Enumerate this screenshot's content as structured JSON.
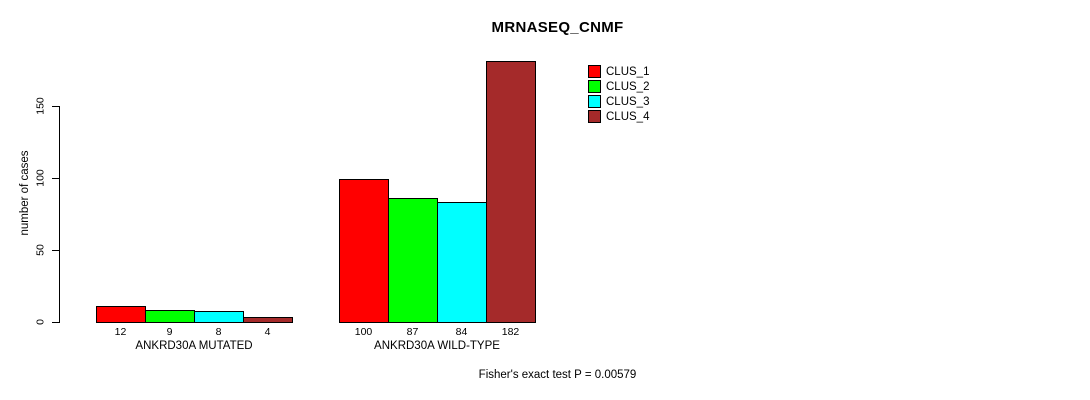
{
  "chart_data": {
    "type": "bar",
    "title": "MRNASEQ_CNMF",
    "ylabel": "number of cases",
    "xlabel": "",
    "ylim": [
      0,
      185
    ],
    "yticks": [
      0,
      50,
      100,
      150
    ],
    "grid": false,
    "legend_position": "top-right",
    "categories": [
      "ANKRD30A MUTATED",
      "ANKRD30A WILD-TYPE"
    ],
    "series": [
      {
        "name": "CLUS_1",
        "color": "#ff0000",
        "values": [
          12,
          100
        ]
      },
      {
        "name": "CLUS_2",
        "color": "#00ff00",
        "values": [
          9,
          87
        ]
      },
      {
        "name": "CLUS_3",
        "color": "#00ffff",
        "values": [
          8,
          84
        ]
      },
      {
        "name": "CLUS_4",
        "color": "#a52a2a",
        "values": [
          4,
          182
        ]
      }
    ],
    "bar_value_labels": [
      [
        12,
        9,
        8,
        4
      ],
      [
        100,
        87,
        84,
        182
      ]
    ],
    "bar_border_color": "#000000",
    "annotation": "Fisher's exact test P = 0.00579"
  }
}
